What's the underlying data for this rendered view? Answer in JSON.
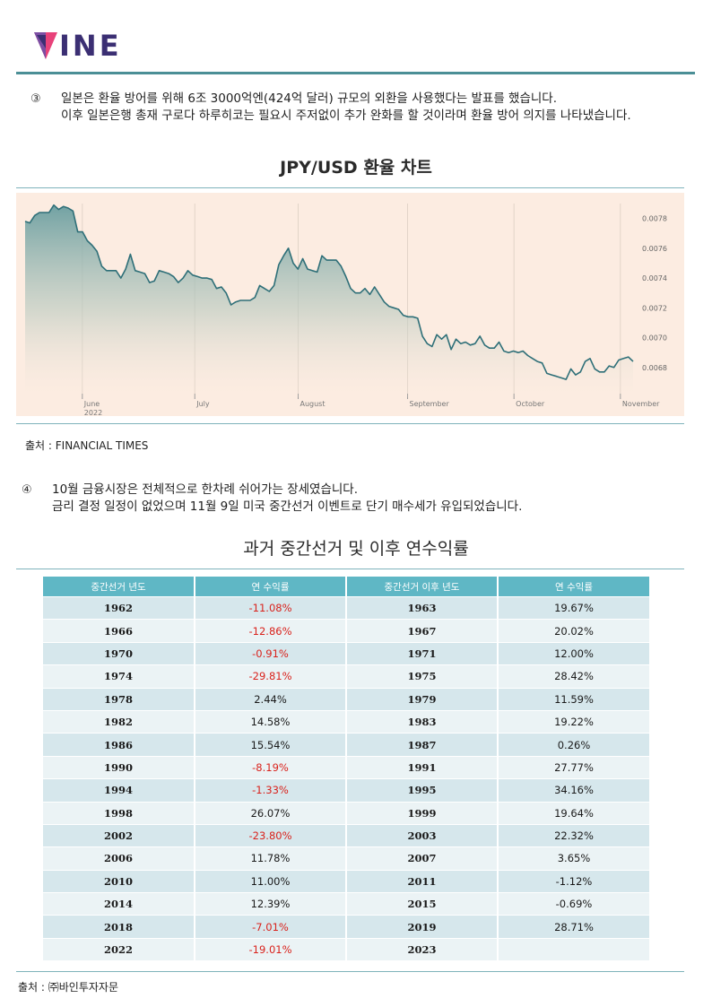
{
  "logo": {
    "text": "INE"
  },
  "section3": {
    "number": "③",
    "lines": [
      "일본은 환율 방어를 위해 6조 3000억엔(424억  달러) 규모의 외환을 사용했다는 발표를 했습니다.",
      "이후 일본은행 총재 구로다 하루히코는 필요시 주저없이 추가 완화를 할 것이라며 환율 방어 의지를 나타냈습니다."
    ]
  },
  "chart_title": "JPY/USD 환율 차트",
  "chart_source": "출처 :  FINANCIAL  TIMES",
  "chart_data": {
    "type": "area",
    "ylim": [
      0.0066,
      0.0079
    ],
    "y_ticks": [
      "0.0078",
      "0.0076",
      "0.0074",
      "0.0072",
      "0.0070",
      "0.0068"
    ],
    "x_ticks": [
      {
        "label": "June",
        "sub": "2022"
      },
      {
        "label": "July",
        "sub": ""
      },
      {
        "label": "August",
        "sub": ""
      },
      {
        "label": "September",
        "sub": ""
      },
      {
        "label": "October",
        "sub": ""
      },
      {
        "label": "November",
        "sub": ""
      }
    ],
    "values": [
      0.00778,
      0.00777,
      0.00782,
      0.00784,
      0.00784,
      0.00784,
      0.00789,
      0.00786,
      0.00788,
      0.00787,
      0.00785,
      0.00771,
      0.00771,
      0.00765,
      0.00762,
      0.00758,
      0.00748,
      0.00745,
      0.00745,
      0.00745,
      0.0074,
      0.00746,
      0.00756,
      0.00745,
      0.00744,
      0.00743,
      0.00737,
      0.00738,
      0.00745,
      0.00744,
      0.00743,
      0.00741,
      0.00737,
      0.0074,
      0.00745,
      0.00742,
      0.00741,
      0.0074,
      0.0074,
      0.00739,
      0.00733,
      0.00734,
      0.0073,
      0.00722,
      0.00724,
      0.00725,
      0.00725,
      0.00725,
      0.00727,
      0.00735,
      0.00733,
      0.00731,
      0.00735,
      0.00749,
      0.00755,
      0.0076,
      0.0075,
      0.00746,
      0.00753,
      0.00746,
      0.00745,
      0.00744,
      0.00755,
      0.00752,
      0.00752,
      0.00752,
      0.00748,
      0.00741,
      0.00733,
      0.0073,
      0.0073,
      0.00733,
      0.00729,
      0.00734,
      0.00729,
      0.00724,
      0.00721,
      0.0072,
      0.00719,
      0.00715,
      0.00714,
      0.00714,
      0.00713,
      0.00701,
      0.00696,
      0.00694,
      0.00702,
      0.00699,
      0.00702,
      0.00692,
      0.00699,
      0.00696,
      0.00697,
      0.00695,
      0.00696,
      0.00701,
      0.00695,
      0.00693,
      0.00693,
      0.00697,
      0.00691,
      0.0069,
      0.00691,
      0.0069,
      0.00691,
      0.00688,
      0.00686,
      0.00684,
      0.00683,
      0.00676,
      0.00675,
      0.00674,
      0.00673,
      0.00672,
      0.00679,
      0.00675,
      0.00677,
      0.00684,
      0.00686,
      0.00679,
      0.00677,
      0.00677,
      0.00681,
      0.0068,
      0.00685,
      0.00686,
      0.00687,
      0.00684
    ]
  },
  "section4": {
    "number": "④",
    "lines": [
      "10월  금융시장은 전체적으로 한차례 쉬어가는 장세였습니다.",
      "금리 결정 일정이 없었으며 11월 9일 미국 중간선거 이벤트로 단기 매수세가 유입되었습니다."
    ]
  },
  "table_title": "과거 중간선거 및 이후 연수익률",
  "table": {
    "headers": [
      "중간선거 년도",
      "연 수익률",
      "중간선거 이후 년도",
      "연 수익률"
    ],
    "rows": [
      [
        "1962",
        "-11.08%",
        "1963",
        "19.67%"
      ],
      [
        "1966",
        "-12.86%",
        "1967",
        "20.02%"
      ],
      [
        "1970",
        "-0.91%",
        "1971",
        "12.00%"
      ],
      [
        "1974",
        "-29.81%",
        "1975",
        "28.42%"
      ],
      [
        "1978",
        "2.44%",
        "1979",
        "11.59%"
      ],
      [
        "1982",
        "14.58%",
        "1983",
        "19.22%"
      ],
      [
        "1986",
        "15.54%",
        "1987",
        "0.26%"
      ],
      [
        "1990",
        "-8.19%",
        "1991",
        "27.77%"
      ],
      [
        "1994",
        "-1.33%",
        "1995",
        "34.16%"
      ],
      [
        "1998",
        "26.07%",
        "1999",
        "19.64%"
      ],
      [
        "2002",
        "-23.80%",
        "2003",
        "22.32%"
      ],
      [
        "2006",
        "11.78%",
        "2007",
        "3.65%"
      ],
      [
        "2010",
        "11.00%",
        "2011",
        "-1.12%"
      ],
      [
        "2014",
        "12.39%",
        "2015",
        "-0.69%"
      ],
      [
        "2018",
        "-7.01%",
        "2019",
        "28.71%"
      ],
      [
        "2022",
        "-19.01%",
        "2023",
        ""
      ]
    ]
  },
  "table_source": "출처 :  ㈜바인투자자문",
  "colors": {
    "accent": "#4b8f96",
    "header": "#5fb7c5",
    "negative": "#d9221c",
    "chart_bg": "#fcece1",
    "chart_line": "#2e6f78"
  }
}
